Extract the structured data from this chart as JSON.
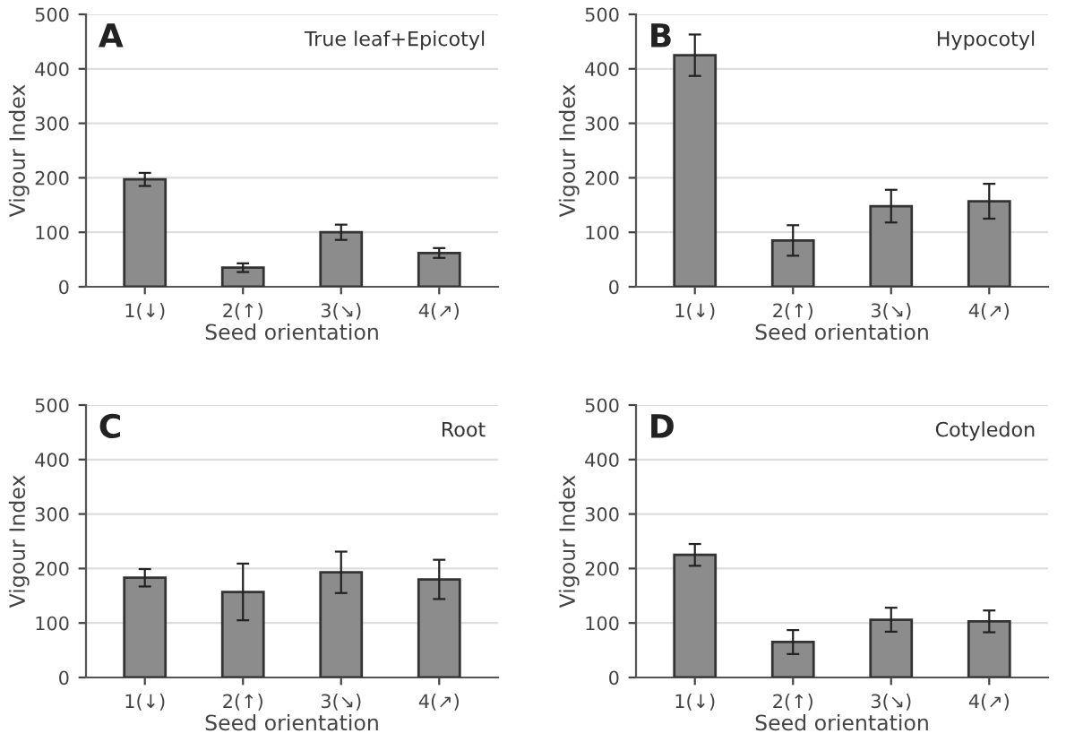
{
  "chart_data": [
    {
      "type": "bar",
      "annotations": [
        "A",
        "True leaf+Epicotyl"
      ],
      "xlabel": "Seed orientation",
      "ylabel": "Vigour Index",
      "categories": [
        "1(↓)",
        "2(↑)",
        "3(↘)",
        "4(↗)"
      ],
      "values": [
        197,
        35,
        100,
        62
      ],
      "errors": [
        12,
        8,
        14,
        9
      ],
      "color": "#8c8c8c",
      "ylim": [
        0,
        500
      ],
      "yticks": [
        0,
        100,
        200,
        300,
        400,
        500
      ],
      "grid": "y"
    },
    {
      "type": "bar",
      "annotations": [
        "B",
        "Hypocotyl"
      ],
      "xlabel": "Seed orientation",
      "ylabel": "Vigour Index",
      "categories": [
        "1(↓)",
        "2(↑)",
        "3(↘)",
        "4(↗)"
      ],
      "values": [
        425,
        85,
        148,
        157
      ],
      "errors": [
        38,
        28,
        30,
        32
      ],
      "color": "#8c8c8c",
      "ylim": [
        0,
        500
      ],
      "yticks": [
        0,
        100,
        200,
        300,
        400,
        500
      ],
      "grid": "y"
    },
    {
      "type": "bar",
      "annotations": [
        "C",
        "Root"
      ],
      "xlabel": "Seed orientation",
      "ylabel": "Vigour Index",
      "categories": [
        "1(↓)",
        "2(↑)",
        "3(↘)",
        "4(↗)"
      ],
      "values": [
        183,
        157,
        193,
        180
      ],
      "errors": [
        16,
        52,
        38,
        36
      ],
      "color": "#8c8c8c",
      "ylim": [
        0,
        500
      ],
      "yticks": [
        0,
        100,
        200,
        300,
        400,
        500
      ],
      "grid": "y"
    },
    {
      "type": "bar",
      "annotations": [
        "D",
        "Cotyledon"
      ],
      "xlabel": "Seed orientation",
      "ylabel": "Vigour Index",
      "categories": [
        "1(↓)",
        "2(↑)",
        "3(↘)",
        "4(↗)"
      ],
      "values": [
        225,
        65,
        106,
        103
      ],
      "errors": [
        20,
        22,
        22,
        20
      ],
      "color": "#8c8c8c",
      "ylim": [
        0,
        500
      ],
      "yticks": [
        0,
        100,
        200,
        300,
        400,
        500
      ],
      "grid": "y"
    }
  ]
}
